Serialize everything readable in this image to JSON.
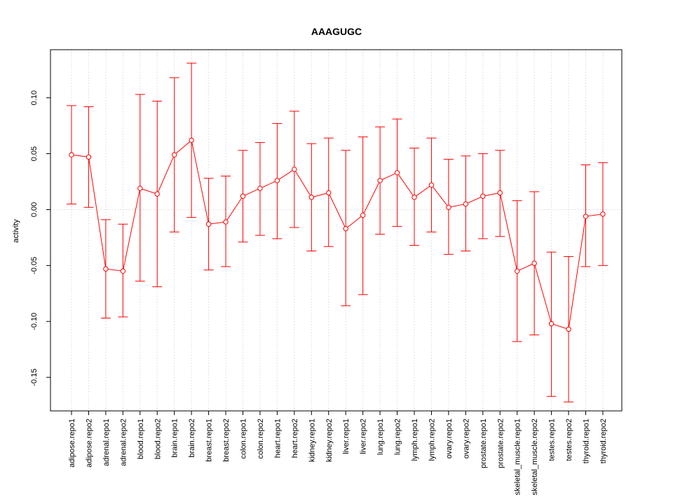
{
  "chart_data": {
    "type": "line",
    "title": "AAAGUGC",
    "xlabel": "",
    "ylabel": "activity",
    "ylim": [
      -0.18,
      0.143
    ],
    "yticks": [
      -0.15,
      -0.1,
      -0.05,
      0.0,
      0.05,
      0.1
    ],
    "ytick_labels": [
      "-0.15",
      "-0.10",
      "-0.05",
      "0.00",
      "0.05",
      "0.10"
    ],
    "grid": true,
    "reference_line": 0.0,
    "color": "#ff0000",
    "categories": [
      "adipose.repo1",
      "adipose.repo2",
      "adrenal.repo1",
      "adrenal.repo2",
      "blood.repo1",
      "blood.repo2",
      "brain.repo1",
      "brain.repo2",
      "breast.repo1",
      "breast.repo2",
      "colon.repo1",
      "colon.repo2",
      "heart.repo1",
      "heart.repo2",
      "kidney.repo1",
      "kidney.repo2",
      "liver.repo1",
      "liver.repo2",
      "lung.repo1",
      "lung.repo2",
      "lymph.repo1",
      "lymph.repo2",
      "ovary.repo1",
      "ovary.repo2",
      "prostate.repo1",
      "prostate.repo2",
      "skeletal_muscle.repo1",
      "skeletal_muscle.repo2",
      "testes.repo1",
      "testes.repo2",
      "thyroid.repo1",
      "thyroid.repo2"
    ],
    "values": [
      0.049,
      0.047,
      -0.053,
      -0.055,
      0.019,
      0.014,
      0.049,
      0.062,
      -0.013,
      -0.011,
      0.012,
      0.019,
      0.026,
      0.036,
      0.011,
      0.015,
      -0.017,
      -0.005,
      0.026,
      0.033,
      0.011,
      0.022,
      0.002,
      0.005,
      0.012,
      0.015,
      -0.055,
      -0.048,
      -0.102,
      -0.107,
      -0.006,
      -0.004
    ],
    "upper": [
      0.093,
      0.092,
      -0.009,
      -0.013,
      0.103,
      0.097,
      0.118,
      0.131,
      0.028,
      0.03,
      0.053,
      0.06,
      0.077,
      0.088,
      0.059,
      0.064,
      0.053,
      0.065,
      0.074,
      0.081,
      0.055,
      0.064,
      0.045,
      0.048,
      0.05,
      0.053,
      0.008,
      0.016,
      -0.038,
      -0.042,
      0.04,
      0.042
    ],
    "lower": [
      0.005,
      0.002,
      -0.097,
      -0.096,
      -0.064,
      -0.069,
      -0.02,
      -0.007,
      -0.054,
      -0.051,
      -0.029,
      -0.023,
      -0.026,
      -0.016,
      -0.037,
      -0.033,
      -0.086,
      -0.076,
      -0.022,
      -0.015,
      -0.032,
      -0.02,
      -0.04,
      -0.037,
      -0.026,
      -0.024,
      -0.118,
      -0.112,
      -0.167,
      -0.172,
      -0.051,
      -0.05
    ]
  }
}
